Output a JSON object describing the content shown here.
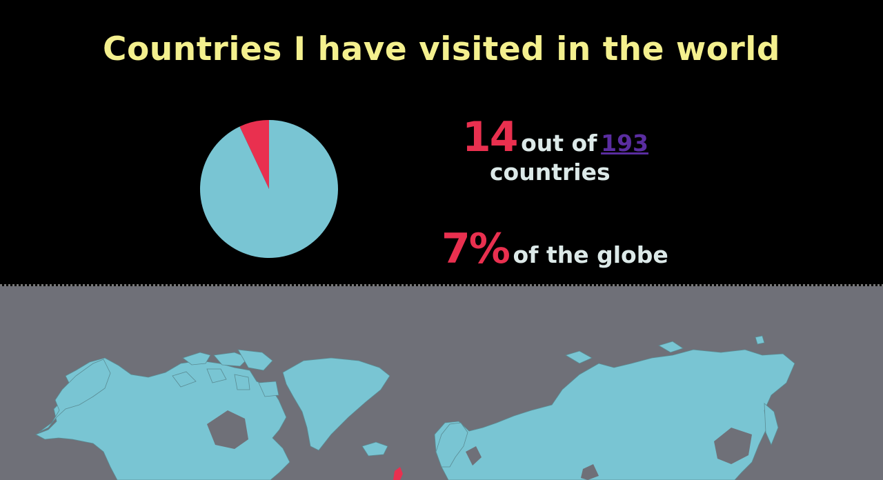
{
  "title": "Countries I have visited in the world",
  "stats": {
    "visited_count": "14",
    "out_of_label": "out of",
    "total_count": "193",
    "countries_label": "countries",
    "percent": "7%",
    "globe_label": "of the globe"
  },
  "chart_data": {
    "type": "pie",
    "values": [
      7,
      93
    ],
    "colors": [
      "#e9304f",
      "#79c5d3"
    ]
  },
  "colors": {
    "title": "#f4f08e",
    "accent": "#e9304f",
    "link": "#5a2da0",
    "land": "#79c5d3",
    "map_background": "#6f7078",
    "header_background": "#000000"
  }
}
